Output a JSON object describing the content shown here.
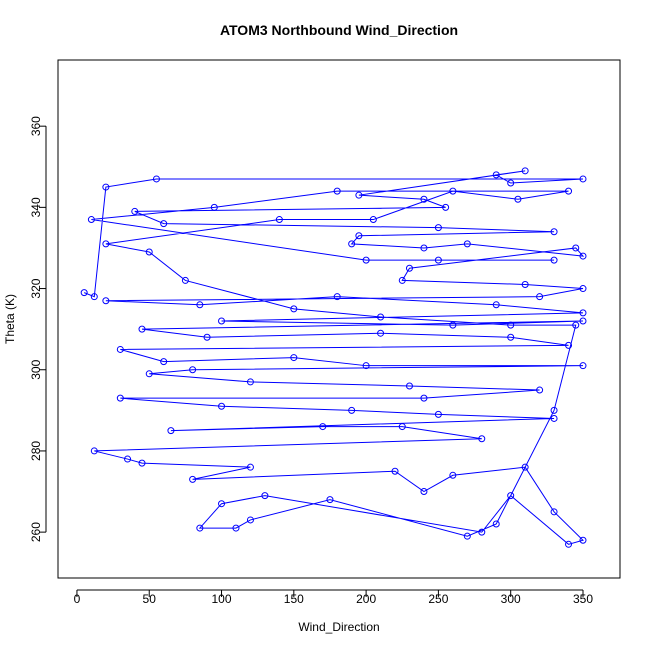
{
  "chart_data": {
    "type": "line",
    "title": "ATOM3 Northbound Wind_Direction",
    "x_label": "Wind_Direction",
    "y_label": "Theta (K)",
    "x": [
      5,
      12,
      20,
      55,
      350,
      300,
      290,
      310,
      195,
      240,
      255,
      40,
      60,
      250,
      330,
      195,
      190,
      240,
      270,
      350,
      345,
      230,
      225,
      310,
      350,
      320,
      20,
      85,
      180,
      290,
      350,
      100,
      260,
      350,
      45,
      90,
      210,
      300,
      340,
      30,
      60,
      150,
      200,
      350,
      80,
      50,
      120,
      230,
      320,
      240,
      30,
      100,
      190,
      250,
      330,
      65,
      170,
      225,
      280,
      12,
      35,
      45,
      120,
      80,
      220,
      240,
      260,
      310,
      330,
      350,
      340,
      300,
      280,
      130,
      100,
      85,
      110,
      120,
      175,
      270,
      290,
      330,
      345,
      300,
      210,
      150,
      75,
      50,
      20,
      140,
      205,
      260,
      305,
      340,
      180,
      95,
      10,
      200,
      250,
      330
    ],
    "series": [
      {
        "name": "Theta",
        "color": "#0000ff",
        "values": [
          319,
          318,
          345,
          347,
          347,
          346,
          348,
          349,
          343,
          342,
          340,
          339,
          336,
          335,
          334,
          333,
          331,
          330,
          331,
          328,
          330,
          325,
          322,
          321,
          320,
          318,
          317,
          316,
          318,
          316,
          314,
          312,
          311,
          312,
          310,
          308,
          309,
          308,
          306,
          305,
          302,
          303,
          301,
          301,
          300,
          299,
          297,
          296,
          295,
          293,
          293,
          291,
          290,
          289,
          288,
          285,
          286,
          286,
          283,
          280,
          278,
          277,
          276,
          273,
          275,
          270,
          274,
          276,
          265,
          258,
          257,
          269,
          260,
          269,
          267,
          261,
          261,
          263,
          268,
          259,
          262,
          290,
          311,
          311,
          313,
          315,
          322,
          329,
          331,
          337,
          337,
          344,
          342,
          344,
          344,
          340,
          337,
          327,
          327,
          327
        ]
      }
    ],
    "xlim": [
      -13.1,
      375.6
    ],
    "ylim": [
      248.7,
      376.3
    ],
    "xticks": [
      0,
      50,
      100,
      150,
      200,
      250,
      300,
      350
    ],
    "yticks": [
      260,
      280,
      300,
      320,
      340,
      360
    ],
    "markers": true
  }
}
